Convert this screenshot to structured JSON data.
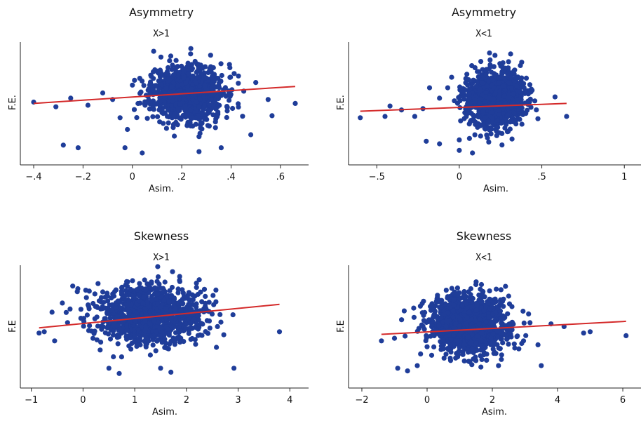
{
  "chart_data": [
    {
      "type": "scatter",
      "title": "Asymmetry",
      "subtitle": "X>1",
      "xlabel": "Asim.",
      "ylabel": "F.E.",
      "xlim": [
        -0.42,
        0.68
      ],
      "ylim": [
        -2.6,
        2.0
      ],
      "xticks": [
        -0.4,
        -0.2,
        0,
        0.2,
        0.4,
        0.6
      ],
      "xtick_labels": [
        "-.4",
        "-.2",
        "0",
        ".2",
        ".4",
        ".6"
      ],
      "fit_line": {
        "x": [
          -0.4,
          0.66
        ],
        "y": [
          -0.35,
          0.3
        ]
      },
      "cluster": {
        "center_x": 0.22,
        "spread_x": 0.075,
        "center_y": 0.05,
        "spread_y": 0.55,
        "count": 900,
        "seed": 11
      },
      "points": [
        {
          "x": -0.4,
          "y": -0.3
        },
        {
          "x": -0.31,
          "y": -0.48
        },
        {
          "x": -0.28,
          "y": -1.95
        },
        {
          "x": -0.22,
          "y": -2.05
        },
        {
          "x": -0.18,
          "y": -0.42
        },
        {
          "x": -0.12,
          "y": 0.05
        },
        {
          "x": -0.08,
          "y": -0.2
        },
        {
          "x": -0.05,
          "y": -0.9
        },
        {
          "x": -0.02,
          "y": -1.35
        },
        {
          "x": 0.66,
          "y": -0.35
        },
        {
          "x": 0.55,
          "y": -0.2
        },
        {
          "x": 0.5,
          "y": 0.45
        },
        {
          "x": 0.48,
          "y": -1.55
        },
        {
          "x": 0.43,
          "y": 0.7
        },
        {
          "x": -0.03,
          "y": -2.05
        },
        {
          "x": 0.04,
          "y": -2.25
        },
        {
          "x": 0.27,
          "y": -2.2
        },
        {
          "x": 0.36,
          "y": -2.05
        },
        {
          "x": -0.25,
          "y": -0.15
        },
        {
          "x": 0.0,
          "y": 0.35
        }
      ]
    },
    {
      "type": "scatter",
      "title": "Asymmetry",
      "subtitle": "X<1",
      "xlabel": "Asim.",
      "ylabel": "F.E.",
      "xlim": [
        -0.62,
        1.05
      ],
      "ylim": [
        -2.3,
        2.3
      ],
      "xticks": [
        -0.5,
        0,
        0.5,
        1
      ],
      "xtick_labels": [
        "-.5",
        "0",
        ".5",
        "1"
      ],
      "fit_line": {
        "x": [
          -0.6,
          0.65
        ],
        "y": [
          -0.35,
          -0.05
        ]
      },
      "cluster": {
        "center_x": 0.22,
        "spread_x": 0.085,
        "center_y": 0.1,
        "spread_y": 0.55,
        "count": 1100,
        "seed": 23
      },
      "points": [
        {
          "x": -0.6,
          "y": -0.6
        },
        {
          "x": -0.45,
          "y": -0.55
        },
        {
          "x": -0.42,
          "y": -0.15
        },
        {
          "x": -0.27,
          "y": -0.55
        },
        {
          "x": -0.22,
          "y": -0.25
        },
        {
          "x": -0.18,
          "y": 0.55
        },
        {
          "x": -0.12,
          "y": 0.15
        },
        {
          "x": -0.07,
          "y": 0.55
        },
        {
          "x": -0.2,
          "y": -1.5
        },
        {
          "x": -0.12,
          "y": -1.6
        },
        {
          "x": 0.0,
          "y": -1.45
        },
        {
          "x": 0.0,
          "y": -1.85
        },
        {
          "x": 0.58,
          "y": 0.2
        },
        {
          "x": 0.65,
          "y": -0.55
        },
        {
          "x": -0.35,
          "y": -0.3
        },
        {
          "x": 0.08,
          "y": -1.95
        }
      ]
    },
    {
      "type": "scatter",
      "title": "Skewness",
      "subtitle": "X>1",
      "xlabel": "Asim.",
      "ylabel": "F.E",
      "xlim": [
        -1.05,
        4.2
      ],
      "ylim": [
        -2.6,
        2.0
      ],
      "xticks": [
        -1,
        0,
        1,
        2,
        3,
        4
      ],
      "xtick_labels": [
        "-1",
        "0",
        "1",
        "2",
        "3",
        "4"
      ],
      "fit_line": {
        "x": [
          -0.85,
          3.8
        ],
        "y": [
          -0.4,
          0.5
        ]
      },
      "cluster": {
        "center_x": 1.3,
        "spread_x": 0.5,
        "center_y": 0.1,
        "spread_y": 0.55,
        "count": 1100,
        "seed": 37
      },
      "points": [
        {
          "x": -0.85,
          "y": -0.6
        },
        {
          "x": -0.75,
          "y": -0.55
        },
        {
          "x": -0.6,
          "y": 0.2
        },
        {
          "x": -0.55,
          "y": -0.9
        },
        {
          "x": -0.4,
          "y": 0.55
        },
        {
          "x": -0.3,
          "y": -0.2
        },
        {
          "x": -0.2,
          "y": 1.2
        },
        {
          "x": -0.1,
          "y": 1.1
        },
        {
          "x": 3.8,
          "y": -0.55
        },
        {
          "x": 2.92,
          "y": -1.95
        },
        {
          "x": 2.9,
          "y": 0.1
        },
        {
          "x": 2.6,
          "y": -0.35
        },
        {
          "x": 0.5,
          "y": -1.95
        },
        {
          "x": 0.7,
          "y": -2.15
        },
        {
          "x": 1.5,
          "y": -1.95
        },
        {
          "x": 1.7,
          "y": -2.1
        }
      ]
    },
    {
      "type": "scatter",
      "title": "Skewness",
      "subtitle": "X<1",
      "xlabel": "Asim.",
      "ylabel": "F.E",
      "xlim": [
        -2.15,
        6.3
      ],
      "ylim": [
        -2.3,
        2.3
      ],
      "xticks": [
        -2,
        0,
        2,
        4,
        6
      ],
      "xtick_labels": [
        "-2",
        "0",
        "2",
        "4",
        "6"
      ],
      "fit_line": {
        "x": [
          -1.4,
          6.1
        ],
        "y": [
          -0.35,
          0.15
        ]
      },
      "cluster": {
        "center_x": 1.3,
        "spread_x": 0.6,
        "center_y": 0.05,
        "spread_y": 0.55,
        "count": 1300,
        "seed": 53
      },
      "points": [
        {
          "x": -1.4,
          "y": -0.6
        },
        {
          "x": -1.0,
          "y": -0.5
        },
        {
          "x": -0.9,
          "y": -1.65
        },
        {
          "x": -0.6,
          "y": -1.75
        },
        {
          "x": -0.3,
          "y": -1.55
        },
        {
          "x": -0.7,
          "y": 0.55
        },
        {
          "x": -0.4,
          "y": 0.3
        },
        {
          "x": 6.1,
          "y": -0.4
        },
        {
          "x": 5.0,
          "y": -0.25
        },
        {
          "x": 4.8,
          "y": -0.3
        },
        {
          "x": 4.2,
          "y": -0.05
        },
        {
          "x": 3.8,
          "y": 0.05
        },
        {
          "x": 3.5,
          "y": -1.55
        },
        {
          "x": 3.4,
          "y": -0.75
        },
        {
          "x": 2.9,
          "y": -0.7
        },
        {
          "x": -0.2,
          "y": -1.1
        }
      ]
    }
  ]
}
